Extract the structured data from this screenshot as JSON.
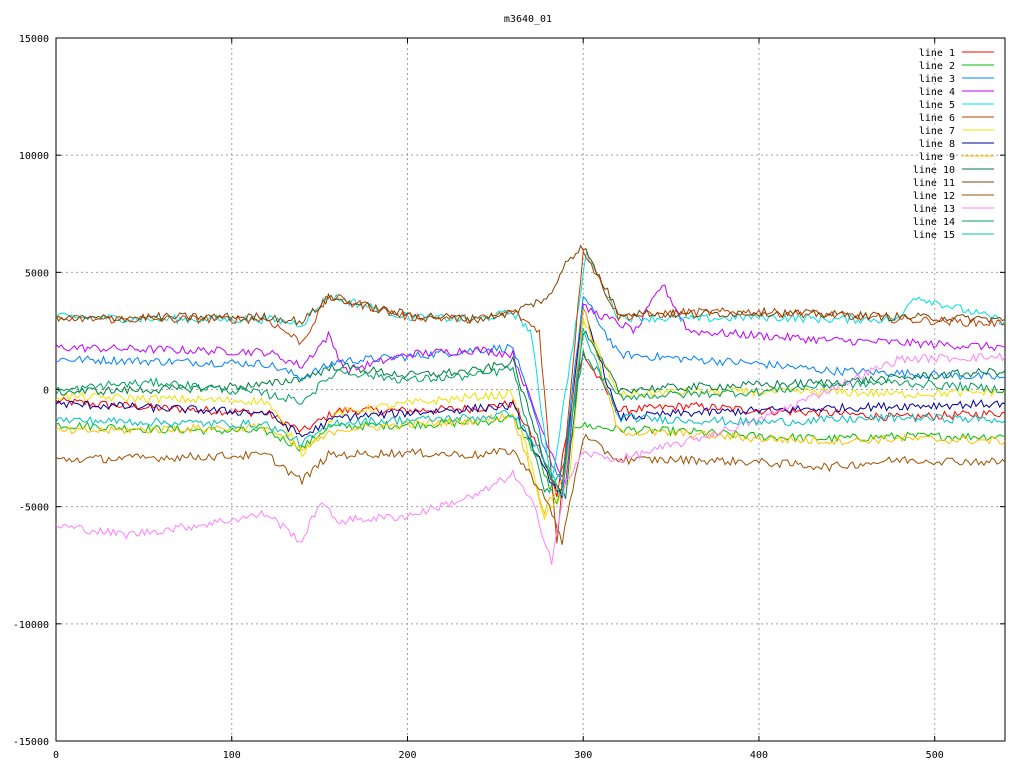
{
  "chart_data": {
    "type": "line",
    "title": "m3640_01",
    "xlabel": "",
    "ylabel": "",
    "xlim": [
      0,
      540
    ],
    "ylim": [
      -15000,
      15000
    ],
    "xticks": [
      0,
      100,
      200,
      300,
      400,
      500
    ],
    "yticks": [
      -15000,
      -10000,
      -5000,
      0,
      5000,
      10000,
      15000
    ],
    "grid": true,
    "legend_position": "top-right",
    "series": [
      {
        "name": "line 1",
        "color": "#ff0000",
        "x": [
          0,
          60,
          120,
          140,
          160,
          200,
          240,
          260,
          275,
          285,
          290,
          300,
          320,
          360,
          400,
          440,
          480,
          540
        ],
        "y": [
          -500,
          -800,
          -1000,
          -1800,
          -900,
          -900,
          -800,
          -600,
          -2500,
          -4500,
          -2000,
          1500,
          -900,
          -700,
          -900,
          -1000,
          -1200,
          -1000
        ]
      },
      {
        "name": "line 2",
        "color": "#00c000",
        "x": [
          0,
          60,
          120,
          140,
          155,
          200,
          240,
          260,
          275,
          285,
          295,
          320,
          360,
          400,
          440,
          480,
          540
        ],
        "y": [
          -1500,
          -1700,
          -1800,
          -2500,
          -1600,
          -1500,
          -1400,
          -1200,
          -3000,
          -5000,
          -1500,
          -1700,
          -1800,
          -2000,
          -2100,
          -2000,
          -2000
        ]
      },
      {
        "name": "line 3",
        "color": "#0080ff",
        "x": [
          0,
          60,
          120,
          140,
          160,
          200,
          240,
          260,
          278,
          288,
          300,
          320,
          360,
          400,
          440,
          480,
          540
        ],
        "y": [
          1300,
          1200,
          1100,
          500,
          1200,
          1400,
          1700,
          1800,
          -2500,
          -4000,
          4000,
          1500,
          1300,
          1100,
          800,
          700,
          500
        ]
      },
      {
        "name": "line 4",
        "color": "#c000ff",
        "x": [
          0,
          60,
          120,
          140,
          155,
          165,
          200,
          240,
          260,
          278,
          290,
          300,
          330,
          345,
          360,
          400,
          440,
          480,
          540
        ],
        "y": [
          1800,
          1700,
          1600,
          1000,
          2300,
          800,
          1500,
          1700,
          1500,
          -2000,
          -4000,
          3500,
          2500,
          4500,
          2500,
          2300,
          2100,
          2000,
          1800
        ]
      },
      {
        "name": "line 5",
        "color": "#00e0e0",
        "x": [
          0,
          60,
          120,
          140,
          155,
          200,
          240,
          260,
          270,
          282,
          302,
          320,
          360,
          400,
          440,
          480,
          488,
          540
        ],
        "y": [
          3100,
          3000,
          3000,
          2800,
          4000,
          3100,
          3000,
          3300,
          2500,
          -4000,
          5800,
          3100,
          3000,
          3100,
          3000,
          3000,
          4000,
          2900
        ]
      },
      {
        "name": "line 6",
        "color": "#c04000",
        "x": [
          0,
          60,
          120,
          140,
          155,
          200,
          240,
          260,
          275,
          285,
          300,
          320,
          360,
          400,
          440,
          480,
          540
        ],
        "y": [
          3000,
          3000,
          3000,
          2000,
          4000,
          3100,
          3000,
          3300,
          2500,
          -6500,
          6000,
          3100,
          3300,
          3300,
          3200,
          3000,
          2800
        ]
      },
      {
        "name": "line 7",
        "color": "#f0e000",
        "x": [
          0,
          60,
          120,
          140,
          160,
          200,
          240,
          260,
          278,
          292,
          300,
          320,
          360,
          400,
          440,
          480,
          540
        ],
        "y": [
          -300,
          -400,
          -500,
          -2700,
          -1000,
          -600,
          -300,
          -200,
          -5500,
          -4000,
          3000,
          -200,
          -100,
          -100,
          -100,
          -200,
          -100
        ]
      },
      {
        "name": "line 8",
        "color": "#0000a0",
        "x": [
          0,
          60,
          120,
          140,
          160,
          200,
          240,
          260,
          278,
          288,
          300,
          320,
          360,
          400,
          440,
          480,
          540
        ],
        "y": [
          -600,
          -800,
          -1000,
          -2000,
          -1200,
          -1000,
          -800,
          -700,
          -3500,
          -4500,
          3500,
          -1200,
          -1000,
          -900,
          -800,
          -700,
          -600
        ]
      },
      {
        "name": "line 9",
        "color": "#ffc000",
        "x": [
          0,
          60,
          120,
          140,
          160,
          200,
          240,
          260,
          278,
          290,
          300,
          320,
          360,
          400,
          440,
          480,
          540
        ],
        "y": [
          -1800,
          -1700,
          -1600,
          -2600,
          -1700,
          -1500,
          -1300,
          -1100,
          -5200,
          -3500,
          3500,
          -1800,
          -1900,
          -2100,
          -2200,
          -2100,
          -2200
        ]
      },
      {
        "name": "line 10",
        "color": "#008040",
        "x": [
          0,
          60,
          120,
          140,
          160,
          200,
          240,
          260,
          280,
          290,
          300,
          320,
          360,
          400,
          440,
          480,
          540
        ],
        "y": [
          -100,
          0,
          200,
          500,
          1000,
          600,
          800,
          1200,
          -3500,
          -4500,
          2500,
          0,
          100,
          200,
          300,
          500,
          800
        ]
      },
      {
        "name": "line 11",
        "color": "#804000",
        "x": [
          0,
          60,
          120,
          140,
          155,
          200,
          240,
          260,
          282,
          290,
          300,
          320,
          360,
          400,
          440,
          480,
          540
        ],
        "y": [
          3000,
          3100,
          3100,
          2900,
          3900,
          3200,
          3000,
          3300,
          4000,
          5500,
          6100,
          3300,
          3200,
          3300,
          3200,
          3100,
          3000
        ]
      },
      {
        "name": "line 12",
        "color": "#a05000",
        "x": [
          0,
          60,
          120,
          140,
          155,
          200,
          240,
          260,
          278,
          288,
          300,
          320,
          360,
          400,
          440,
          480,
          540
        ],
        "y": [
          -3000,
          -2900,
          -2800,
          -3900,
          -2800,
          -2700,
          -2800,
          -2600,
          -4500,
          -6500,
          -2000,
          -3000,
          -3000,
          -3100,
          -3300,
          -3000,
          -3100
        ]
      },
      {
        "name": "line 13",
        "color": "#ff80ff",
        "x": [
          0,
          40,
          80,
          120,
          140,
          150,
          160,
          200,
          240,
          260,
          272,
          282,
          290,
          300,
          320,
          360,
          400,
          440,
          480,
          540
        ],
        "y": [
          -5800,
          -6200,
          -5800,
          -5300,
          -6500,
          -4800,
          -5600,
          -5400,
          -4500,
          -3600,
          -5000,
          -7300,
          -4000,
          -2700,
          -3000,
          -2200,
          -1300,
          0,
          1300,
          1400
        ]
      },
      {
        "name": "line 14",
        "color": "#00a060",
        "x": [
          0,
          30,
          60,
          120,
          140,
          160,
          200,
          240,
          260,
          278,
          288,
          300,
          320,
          360,
          400,
          440,
          480,
          540
        ],
        "y": [
          -100,
          200,
          300,
          -200,
          -500,
          800,
          400,
          600,
          900,
          -4500,
          -3500,
          1500,
          -300,
          -200,
          -100,
          200,
          300,
          0
        ]
      },
      {
        "name": "line 15",
        "color": "#00c0c0",
        "x": [
          0,
          60,
          120,
          140,
          160,
          200,
          240,
          260,
          278,
          288,
          300,
          320,
          360,
          400,
          440,
          480,
          540
        ],
        "y": [
          -1300,
          -1400,
          -1500,
          -2300,
          -1400,
          -1300,
          -1200,
          -1000,
          -3000,
          -4500,
          2500,
          -1200,
          -1300,
          -1400,
          -1300,
          -1200,
          -1300
        ]
      }
    ]
  }
}
